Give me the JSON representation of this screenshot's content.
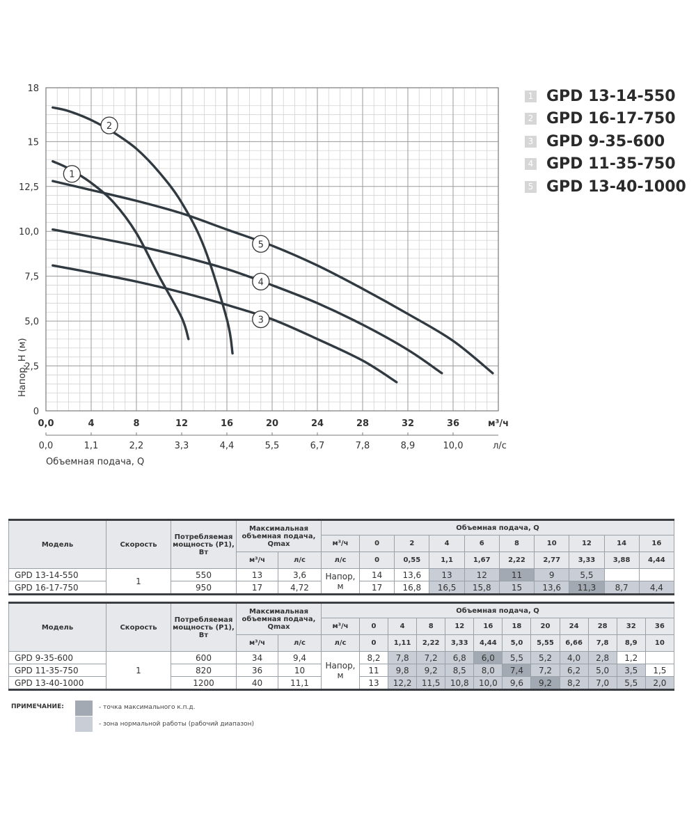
{
  "chart_data": {
    "type": "line",
    "ylabel": "Напор, Н (м)",
    "xlabel": "Объемная подача, Q",
    "x_unit": "м³/ч",
    "x2_unit": "л/с",
    "xlim": [
      0,
      40
    ],
    "ylim": [
      0,
      18
    ],
    "x_ticks": [
      "0,0",
      "4",
      "8",
      "12",
      "16",
      "20",
      "24",
      "28",
      "32",
      "36"
    ],
    "x2_ticks": [
      "0,0",
      "1,1",
      "2,2",
      "3,3",
      "4,4",
      "5,5",
      "6,7",
      "7,8",
      "8,9",
      "10,0"
    ],
    "y_ticks": [
      {
        "v": 0,
        "label": "0"
      },
      {
        "v": 2.5,
        "label": "2,5"
      },
      {
        "v": 5,
        "label": "5,0"
      },
      {
        "v": 7.5,
        "label": "7,5"
      },
      {
        "v": 10,
        "label": "10,0"
      },
      {
        "v": 12.5,
        "label": "12,5"
      },
      {
        "v": 15,
        "label": "15"
      },
      {
        "v": 18,
        "label": "18"
      }
    ],
    "grid": true,
    "series": [
      {
        "name": "GPD 13-14-550",
        "marker": "1",
        "marker_at": [
          2.3,
          13.2
        ],
        "x": [
          0.6,
          2,
          4,
          6,
          8,
          10,
          12,
          12.6
        ],
        "y": [
          13.9,
          13.5,
          12.7,
          11.6,
          9.9,
          7.5,
          5.2,
          4.0
        ]
      },
      {
        "name": "GPD 16-17-750",
        "marker": "2",
        "marker_at": [
          5.6,
          15.9
        ],
        "x": [
          0.6,
          2,
          4,
          6,
          8,
          10,
          12,
          14,
          16,
          16.5
        ],
        "y": [
          16.9,
          16.7,
          16.2,
          15.5,
          14.6,
          13.3,
          11.6,
          9.1,
          5.1,
          3.2
        ]
      },
      {
        "name": "GPD 9-35-600",
        "marker": "3",
        "marker_at": [
          19,
          5.1
        ],
        "x": [
          0.6,
          4,
          8,
          12,
          16,
          20,
          24,
          28,
          31
        ],
        "y": [
          8.1,
          7.7,
          7.2,
          6.6,
          5.9,
          5.1,
          4.0,
          2.8,
          1.6
        ]
      },
      {
        "name": "GPD 11-35-750",
        "marker": "4",
        "marker_at": [
          19,
          7.2
        ],
        "x": [
          0.6,
          4,
          8,
          12,
          16,
          20,
          24,
          28,
          32,
          35
        ],
        "y": [
          10.1,
          9.7,
          9.2,
          8.6,
          7.9,
          7.0,
          6.0,
          4.8,
          3.4,
          2.1
        ]
      },
      {
        "name": "GPD 13-40-1000",
        "marker": "5",
        "marker_at": [
          19,
          9.3
        ],
        "x": [
          0.6,
          4,
          8,
          12,
          16,
          20,
          24,
          28,
          32,
          36,
          39.5
        ],
        "y": [
          12.8,
          12.3,
          11.7,
          11.0,
          10.1,
          9.2,
          8.1,
          6.8,
          5.4,
          3.9,
          2.1
        ]
      }
    ]
  },
  "legend": [
    {
      "num": "1",
      "name": "GPD 13-14-550"
    },
    {
      "num": "2",
      "name": "GPD 16-17-750"
    },
    {
      "num": "3",
      "name": "GPD 9-35-600"
    },
    {
      "num": "4",
      "name": "GPD 11-35-750"
    },
    {
      "num": "5",
      "name": "GPD 13-40-1000"
    }
  ],
  "tables": [
    {
      "headers": {
        "model": "Модель",
        "speed": "Скорость",
        "power": "Потребляемая мощность (Р1), Вт",
        "qmax": "Максимальная объемная подача, Qmax",
        "qmax_m3h": "м³/ч",
        "qmax_ls": "л/с",
        "flow": "Объемная подача, Q",
        "flow_m3h_label": "м³/ч",
        "flow_ls_label": "л/с"
      },
      "q_m3h": [
        "0",
        "2",
        "4",
        "6",
        "8",
        "10",
        "12",
        "14",
        "16"
      ],
      "q_ls": [
        "0",
        "0,55",
        "1,1",
        "1,67",
        "2,22",
        "2,77",
        "3,33",
        "3,88",
        "4,44"
      ],
      "speed": "1",
      "head_label": "Напор, м",
      "rows": [
        {
          "model": "GPD 13-14-550",
          "power": "550",
          "qmax_m3h": "13",
          "qmax_ls": "3,6",
          "values": [
            "14",
            "13,6",
            "13",
            "12",
            "11",
            "9",
            "5,5",
            "",
            ""
          ],
          "shade": [
            "",
            "",
            "zone",
            "zone",
            "eff",
            "zone",
            "zone",
            "",
            ""
          ]
        },
        {
          "model": "GPD 16-17-750",
          "power": "950",
          "qmax_m3h": "17",
          "qmax_ls": "4,72",
          "values": [
            "17",
            "16,8",
            "16,5",
            "15,8",
            "15",
            "13,6",
            "11,3",
            "8,7",
            "4,4"
          ],
          "shade": [
            "",
            "",
            "zone",
            "zone",
            "zone",
            "zone",
            "eff",
            "zone",
            "zone"
          ]
        }
      ]
    },
    {
      "headers": {
        "model": "Модель",
        "speed": "Скорость",
        "power": "Потребляемая мощность (Р1), Вт",
        "qmax": "Максимальная объемная подача, Qmax",
        "qmax_m3h": "м³/ч",
        "qmax_ls": "л/с",
        "flow": "Объемная подача, Q",
        "flow_m3h_label": "м³/ч",
        "flow_ls_label": "л/с"
      },
      "q_m3h": [
        "0",
        "4",
        "8",
        "12",
        "16",
        "18",
        "20",
        "24",
        "28",
        "32",
        "36"
      ],
      "q_ls": [
        "0",
        "1,11",
        "2,22",
        "3,33",
        "4,44",
        "5,0",
        "5,55",
        "6,66",
        "7,8",
        "8,9",
        "10"
      ],
      "speed": "1",
      "head_label": "Напор, м",
      "rows": [
        {
          "model": "GPD 9-35-600",
          "power": "600",
          "qmax_m3h": "34",
          "qmax_ls": "9,4",
          "values": [
            "8,2",
            "7,8",
            "7,2",
            "6,8",
            "6,0",
            "5,5",
            "5,2",
            "4,0",
            "2,8",
            "1,2",
            ""
          ],
          "shade": [
            "",
            "zone",
            "zone",
            "zone",
            "eff",
            "zone",
            "zone",
            "zone",
            "zone",
            "",
            ""
          ]
        },
        {
          "model": "GPD 11-35-750",
          "power": "820",
          "qmax_m3h": "36",
          "qmax_ls": "10",
          "values": [
            "11",
            "9,8",
            "9,2",
            "8,5",
            "8,0",
            "7,4",
            "7,2",
            "6,2",
            "5,0",
            "3,5",
            "1,5"
          ],
          "shade": [
            "",
            "zone",
            "zone",
            "zone",
            "zone",
            "eff",
            "zone",
            "zone",
            "zone",
            "zone",
            ""
          ]
        },
        {
          "model": "GPD 13-40-1000",
          "power": "1200",
          "qmax_m3h": "40",
          "qmax_ls": "11,1",
          "values": [
            "13",
            "12,2",
            "11,5",
            "10,8",
            "10,0",
            "9,6",
            "9,2",
            "8,2",
            "7,0",
            "5,5",
            "2,0"
          ],
          "shade": [
            "",
            "zone",
            "zone",
            "zone",
            "zone",
            "zone",
            "eff",
            "zone",
            "zone",
            "zone",
            "zone"
          ]
        }
      ]
    }
  ],
  "note": {
    "label": "ПРИМЕЧАНИЕ:",
    "items": [
      {
        "text": "- точка максимального к.п.д.",
        "color": "#a3a9b2"
      },
      {
        "text": "- зона нормальной работы (рабочий диапазон)",
        "color": "#c9ced6"
      }
    ]
  },
  "colors": {
    "curve": "#303a40",
    "grid_major": "#9a9a9a",
    "grid_minor": "#d2d2d2"
  }
}
